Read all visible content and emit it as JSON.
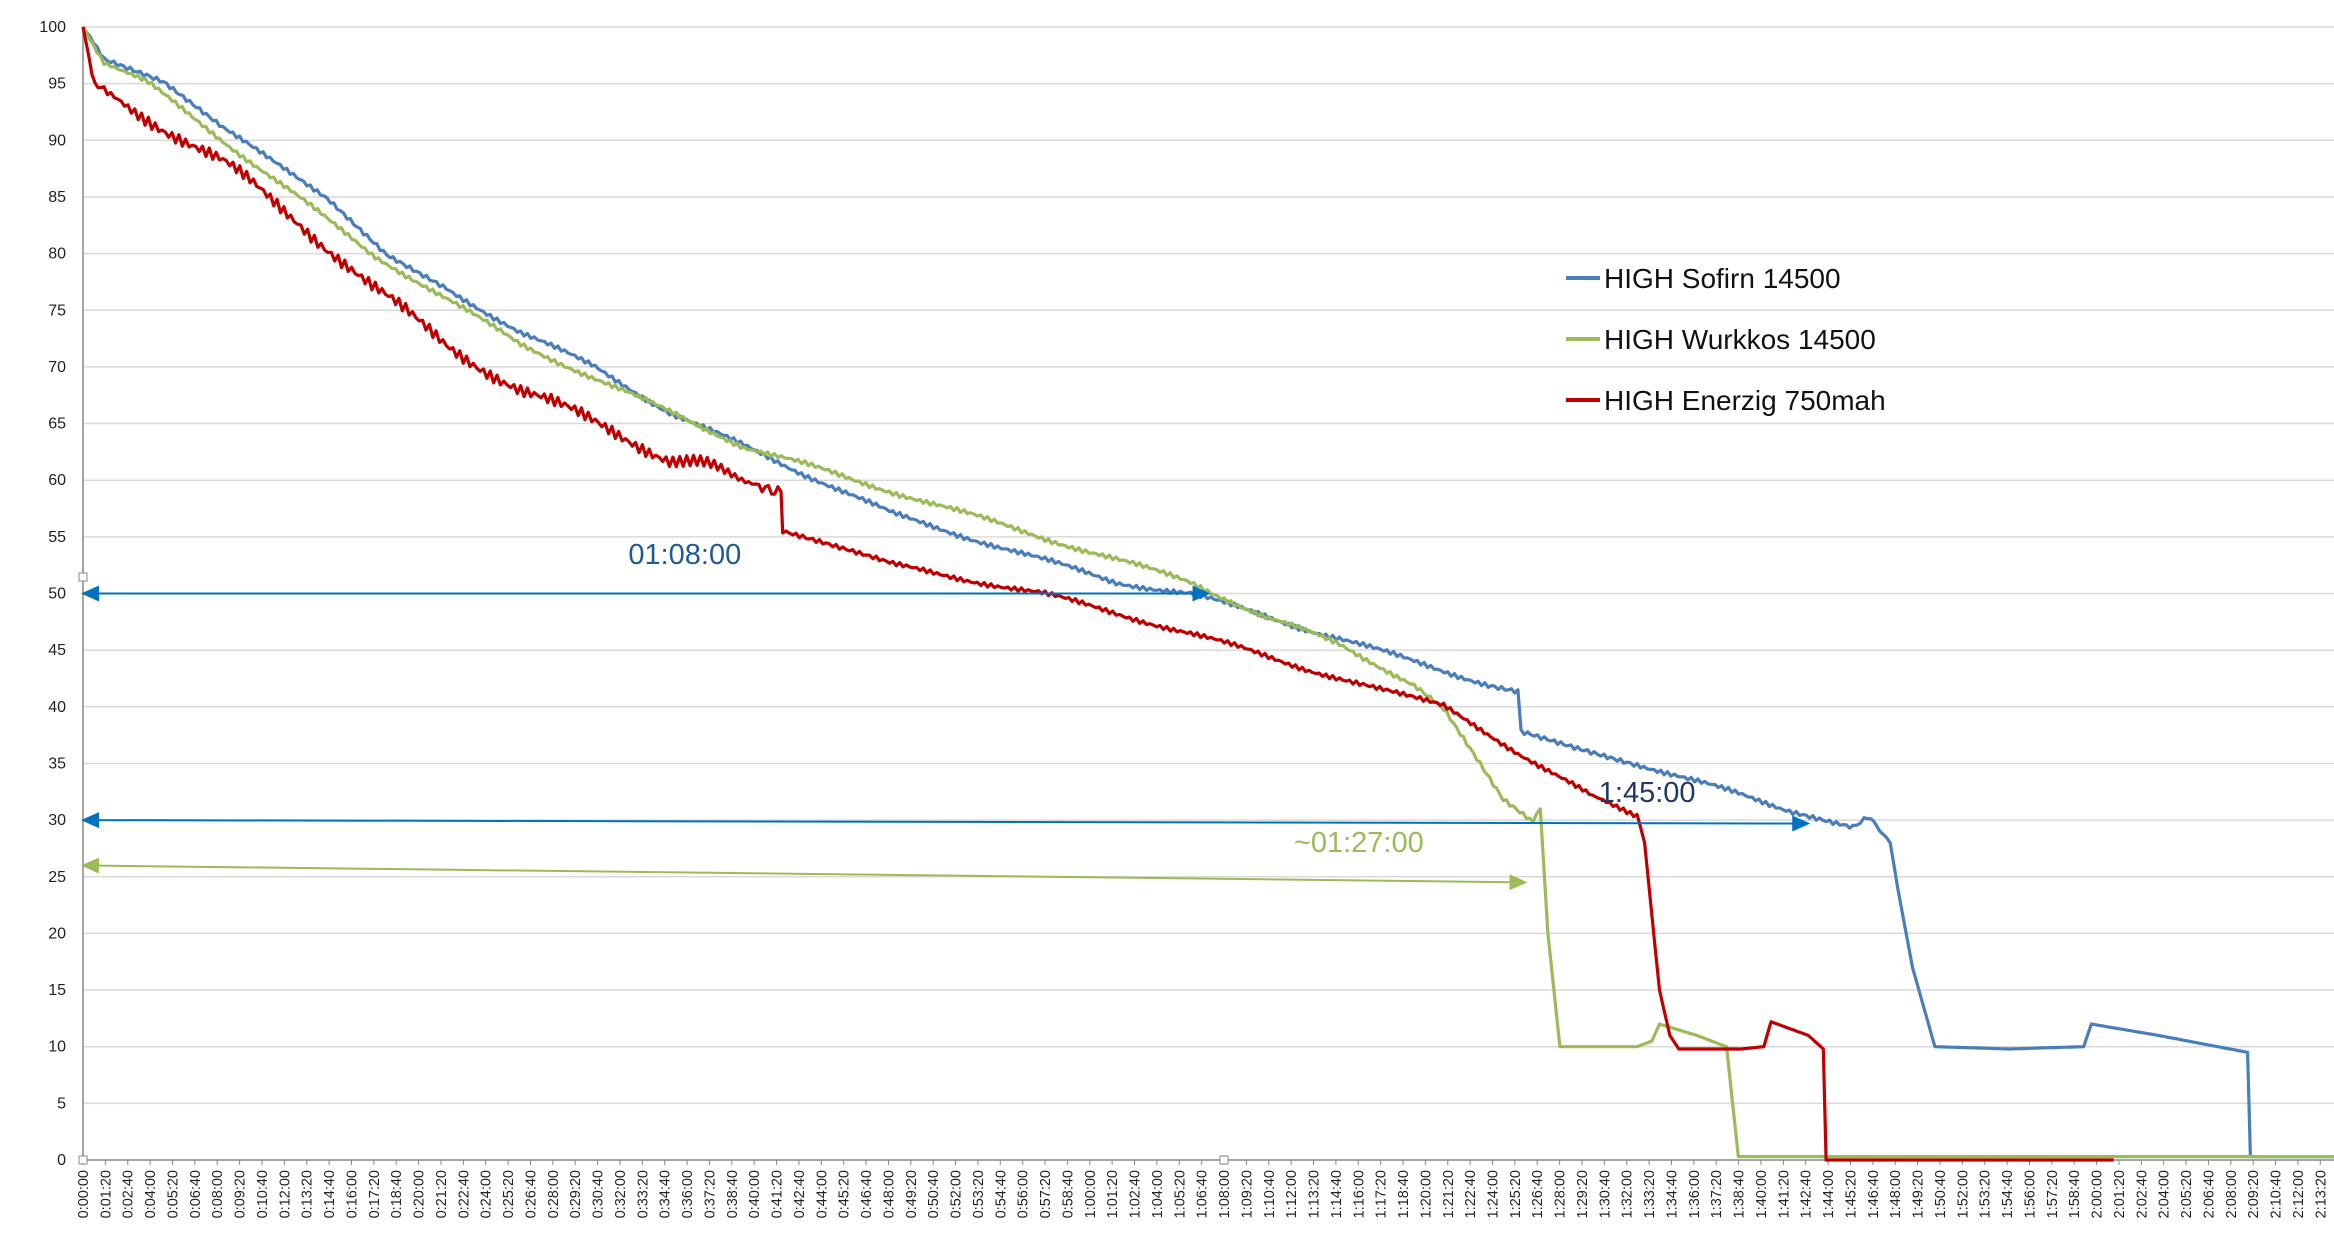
{
  "chart_data": {
    "type": "line",
    "title": "",
    "xlabel": "",
    "ylabel": "",
    "ylim": [
      0,
      100
    ],
    "y_ticks": [
      0,
      5,
      10,
      15,
      20,
      25,
      30,
      35,
      40,
      45,
      50,
      55,
      60,
      65,
      70,
      75,
      80,
      85,
      90,
      95,
      100
    ],
    "x_unit": "seconds",
    "x_tick_step_seconds": 80,
    "x_tick_count": 101,
    "xlim": [
      0,
      8049
    ],
    "grid": "horizontal",
    "legend_position": "right",
    "series": [
      {
        "name": "HIGH Sofirn 14500",
        "color": "#4a7ebb",
        "points": [
          [
            0,
            100
          ],
          [
            75,
            97
          ],
          [
            287,
            95
          ],
          [
            500,
            91
          ],
          [
            873,
            85
          ],
          [
            1086,
            80
          ],
          [
            1299,
            77
          ],
          [
            1565,
            73
          ],
          [
            1831,
            70
          ],
          [
            2097,
            66
          ],
          [
            2363,
            63
          ],
          [
            2630,
            60
          ],
          [
            2896,
            57
          ],
          [
            3162,
            55
          ],
          [
            3428,
            53
          ],
          [
            3694,
            51
          ],
          [
            3960,
            50
          ],
          [
            4226,
            48
          ],
          [
            4493,
            46
          ],
          [
            4759,
            44
          ],
          [
            5025,
            42
          ],
          [
            5131,
            41.5
          ],
          [
            5142,
            38
          ],
          [
            5344,
            36.5
          ],
          [
            5557,
            35
          ],
          [
            5823,
            33
          ],
          [
            6090,
            31
          ],
          [
            6329,
            29.5
          ],
          [
            6382,
            30
          ],
          [
            6436,
            29
          ],
          [
            6462,
            28
          ],
          [
            6489,
            24
          ],
          [
            6542,
            17
          ],
          [
            6622,
            10
          ],
          [
            6888,
            9.8
          ],
          [
            7154,
            10
          ],
          [
            7181,
            12
          ],
          [
            7420,
            11
          ],
          [
            7740,
            9.5
          ],
          [
            7750,
            0.3
          ],
          [
            8049,
            0.3
          ]
        ]
      },
      {
        "name": "HIGH Wurkkos 14500",
        "color": "#9bbb59",
        "points": [
          [
            0,
            100
          ],
          [
            75,
            97
          ],
          [
            234,
            95
          ],
          [
            500,
            90
          ],
          [
            767,
            85
          ],
          [
            1033,
            80
          ],
          [
            1299,
            76
          ],
          [
            1565,
            72
          ],
          [
            1831,
            69
          ],
          [
            2097,
            66
          ],
          [
            2363,
            63
          ],
          [
            2630,
            61
          ],
          [
            2896,
            59
          ],
          [
            3162,
            57
          ],
          [
            3428,
            55
          ],
          [
            3694,
            53
          ],
          [
            3960,
            51
          ],
          [
            4226,
            48
          ],
          [
            4493,
            45.5
          ],
          [
            4759,
            42
          ],
          [
            4865,
            40
          ],
          [
            4972,
            36
          ],
          [
            5078,
            32
          ],
          [
            5185,
            30
          ],
          [
            5211,
            31
          ],
          [
            5238,
            20
          ],
          [
            5281,
            10
          ],
          [
            5557,
            10
          ],
          [
            5610,
            10.5
          ],
          [
            5637,
            12
          ],
          [
            5770,
            11
          ],
          [
            5877,
            10
          ],
          [
            5919,
            0.3
          ],
          [
            8049,
            0.3
          ]
        ]
      },
      {
        "name": "HIGH Enerzig 750mah",
        "color": "#c00000",
        "points": [
          [
            0,
            100
          ],
          [
            32,
            96
          ],
          [
            75,
            94
          ],
          [
            234,
            92
          ],
          [
            500,
            88
          ],
          [
            767,
            83
          ],
          [
            1033,
            77
          ],
          [
            1299,
            72
          ],
          [
            1565,
            68
          ],
          [
            1831,
            65
          ],
          [
            2097,
            62
          ],
          [
            2257,
            61
          ],
          [
            2417,
            60
          ],
          [
            2496,
            59
          ],
          [
            2502,
            55.5
          ],
          [
            2896,
            52.5
          ],
          [
            3428,
            50
          ],
          [
            3960,
            46.5
          ],
          [
            4493,
            42.5
          ],
          [
            4865,
            40
          ],
          [
            5131,
            36
          ],
          [
            5398,
            32
          ],
          [
            5557,
            30.5
          ],
          [
            5584,
            28
          ],
          [
            5637,
            15
          ],
          [
            5674,
            11
          ],
          [
            5706,
            9.8
          ],
          [
            5930,
            9.8
          ],
          [
            6010,
            10
          ],
          [
            6036,
            12.2
          ],
          [
            6169,
            11
          ],
          [
            6223,
            9.8
          ],
          [
            6233,
            0
          ],
          [
            7261,
            0
          ]
        ]
      }
    ],
    "annotations": [
      {
        "text": "01:08:00",
        "color": "#1f5a96",
        "arrow_color": "#0070c0",
        "arrow": [
          [
            0,
            50
          ],
          [
            4024,
            50
          ]
        ],
        "label_at": [
          1950,
          52.6
        ]
      },
      {
        "text": "1:45:00",
        "color": "#1f3864",
        "arrow_color": "#0070c0",
        "arrow": [
          [
            0,
            30
          ],
          [
            6169,
            29.7
          ]
        ],
        "label_at": [
          5420,
          31.6
        ]
      },
      {
        "text": "~01:27:00",
        "color": "#9bbb59",
        "arrow_color": "#9bbb59",
        "arrow": [
          [
            0,
            26
          ],
          [
            5158,
            24.5
          ]
        ],
        "label_at": [
          4330,
          27.2
        ]
      }
    ]
  }
}
